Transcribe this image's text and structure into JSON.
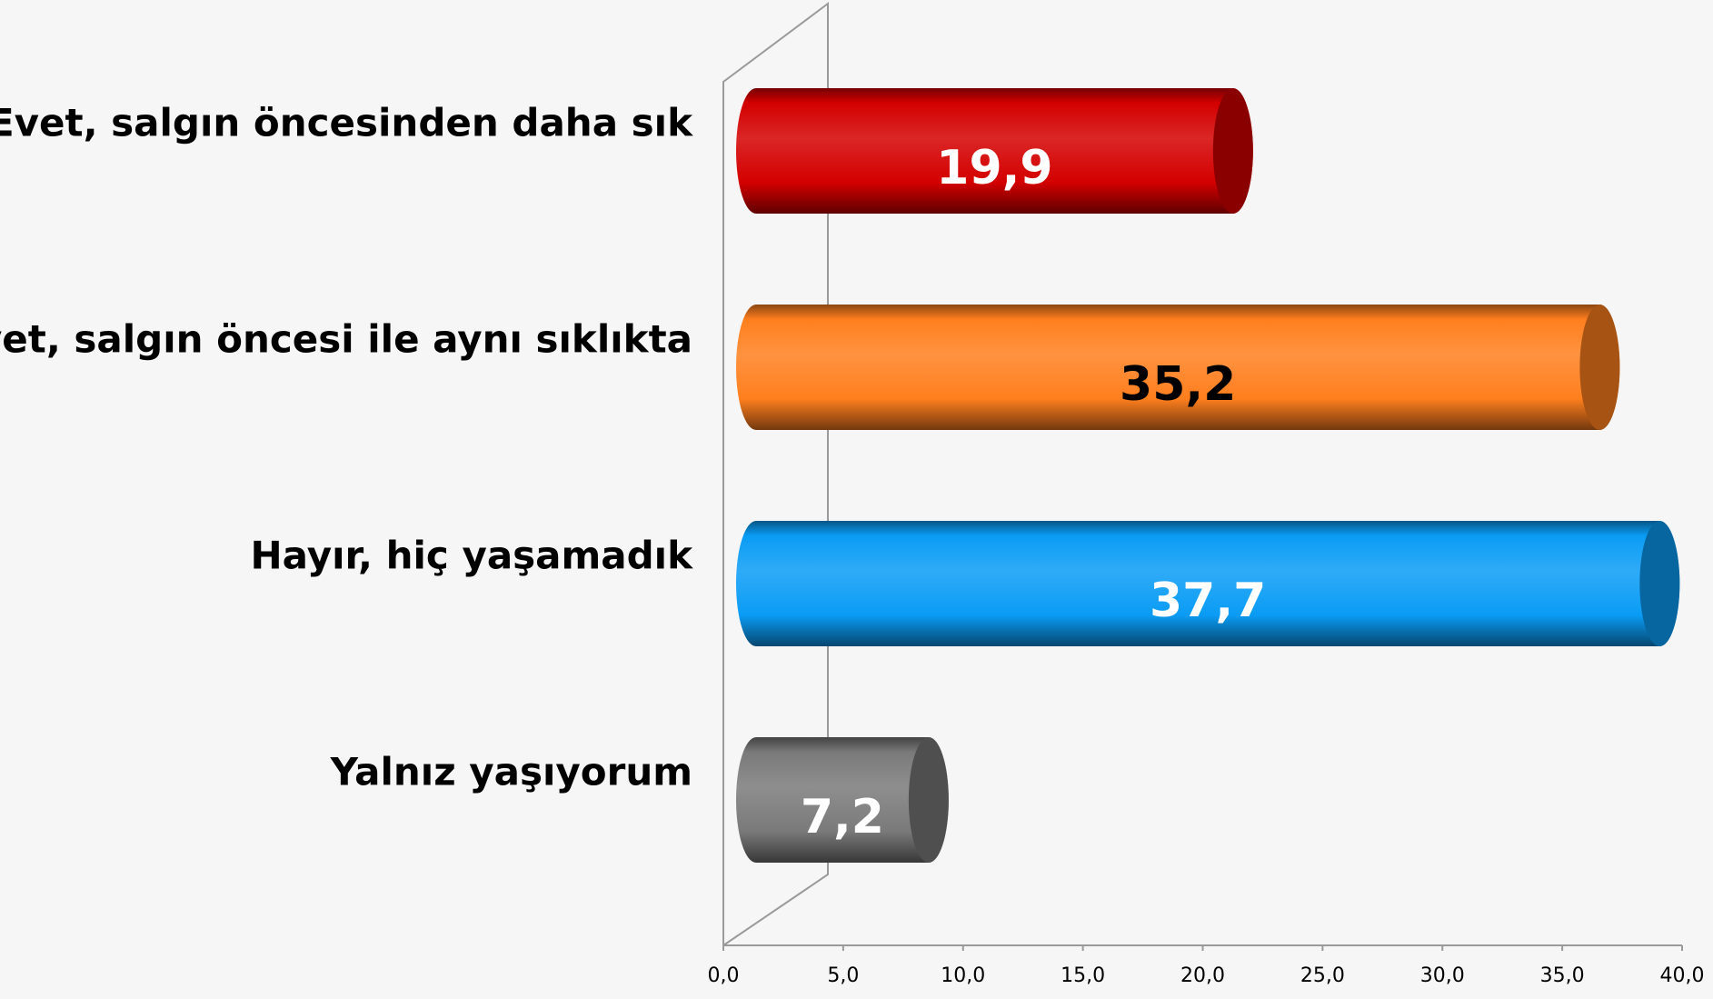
{
  "chart_data": {
    "type": "bar",
    "orientation": "horizontal",
    "categories": [
      "Evet, salgın öncesinden daha sık",
      "Evet, salgın öncesi ile aynı sıklıkta",
      "Hayır, hiç yaşamadık",
      "Yalnız yaşıyorum"
    ],
    "values": [
      19.9,
      35.2,
      37.7,
      7.2
    ],
    "value_labels": [
      "19,9",
      "35,2",
      "37,7",
      "7,2"
    ],
    "colors": [
      "#d40000",
      "#ff7f1e",
      "#0a9cf5",
      "#7a7a7a"
    ],
    "label_colors": [
      "#ffffff",
      "#000000",
      "#ffffff",
      "#ffffff"
    ],
    "xlim": [
      0,
      40
    ],
    "xticks": [
      {
        "value": 0,
        "label": "0,0"
      },
      {
        "value": 5,
        "label": "5,0"
      },
      {
        "value": 10,
        "label": "10,0"
      },
      {
        "value": 15,
        "label": "15,0"
      },
      {
        "value": 20,
        "label": "20,0"
      },
      {
        "value": 25,
        "label": "25,0"
      },
      {
        "value": 30,
        "label": "30,0"
      },
      {
        "value": 35,
        "label": "35,0"
      },
      {
        "value": 40,
        "label": "40,0"
      }
    ]
  }
}
